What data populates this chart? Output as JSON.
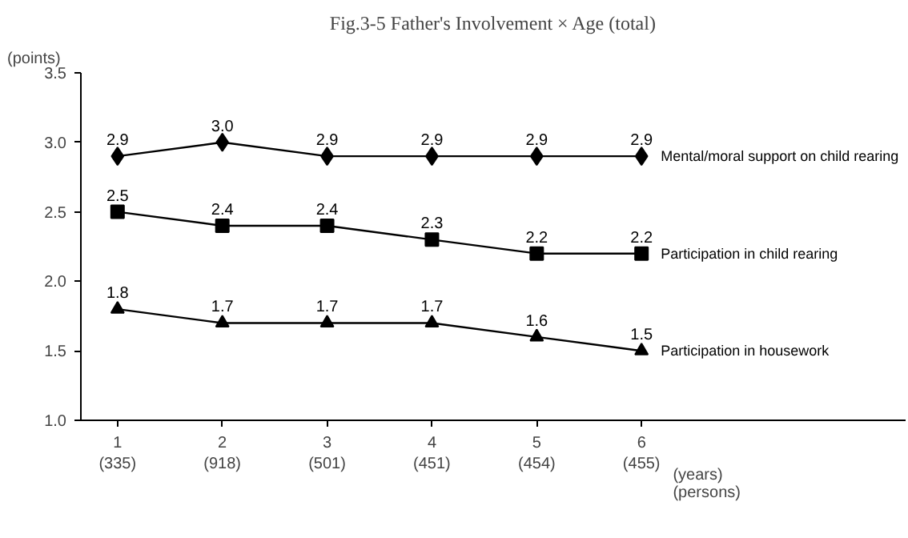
{
  "chart_data": {
    "type": "line",
    "title": "Fig.3-5 Father's Involvement × Age (total)",
    "ylabel": "(points)",
    "xlabel": "(years)\n(persons)",
    "categories": [
      "1\n(335)",
      "2\n(918)",
      "3\n(501)",
      "4\n(451)",
      "5\n(454)",
      "6\n(455)"
    ],
    "ylim": [
      1.0,
      3.5
    ],
    "yticks": [
      {
        "value": 1.0,
        "label": "1.0"
      },
      {
        "value": 1.5,
        "label": "1.5"
      },
      {
        "value": 2.0,
        "label": "2.0"
      },
      {
        "value": 2.5,
        "label": "2.5"
      },
      {
        "value": 3.0,
        "label": "3.0"
      },
      {
        "value": 3.5,
        "label": "3.5"
      }
    ],
    "grid": false,
    "data_labels": true,
    "line_style": "solid",
    "series": [
      {
        "name": "Mental/moral support on child rearing",
        "color": "#000000",
        "marker": "diamond",
        "values": [
          2.9,
          3.0,
          2.9,
          2.9,
          2.9,
          2.9
        ],
        "value_labels": [
          "2.9",
          "3.0",
          "2.9",
          "2.9",
          "2.9",
          "2.9"
        ]
      },
      {
        "name": "Participation in child rearing",
        "color": "#000000",
        "marker": "square",
        "values": [
          2.5,
          2.4,
          2.4,
          2.3,
          2.2,
          2.2
        ]
      },
      {
        "name": "Participation in housework",
        "color": "#000000",
        "marker": "triangle",
        "values": [
          1.8,
          1.7,
          1.7,
          1.7,
          1.6,
          1.5
        ]
      }
    ]
  }
}
